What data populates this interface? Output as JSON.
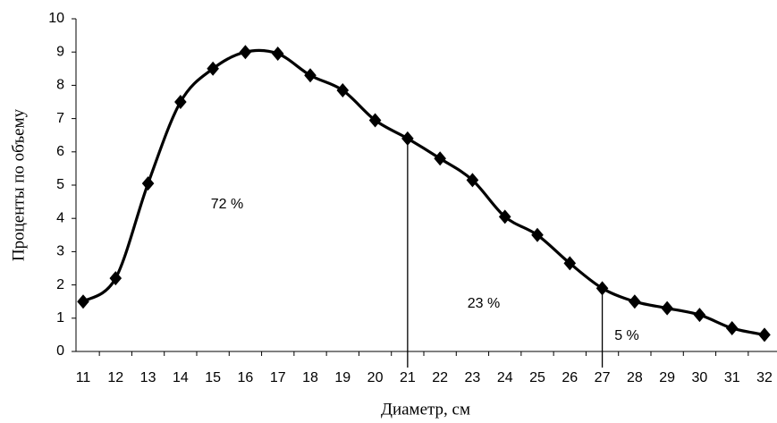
{
  "chart_data": {
    "type": "line",
    "x_label": "Диаметр, см",
    "y_label": "Проценты по объему",
    "x": [
      11,
      12,
      13,
      14,
      15,
      16,
      17,
      18,
      19,
      20,
      21,
      22,
      23,
      24,
      25,
      26,
      27,
      28,
      29,
      30,
      31,
      32
    ],
    "xlim": [
      11,
      32
    ],
    "series": [
      {
        "name": "Проценты по объему",
        "color": "#000000",
        "values": [
          1.5,
          2.2,
          5.05,
          7.5,
          8.5,
          9.0,
          8.95,
          8.3,
          7.85,
          6.95,
          6.4,
          5.8,
          5.15,
          4.05,
          3.5,
          2.65,
          1.9,
          1.5,
          1.3,
          1.1,
          0.7,
          0.5
        ]
      }
    ],
    "ylim": [
      0,
      10
    ],
    "yticks": [
      0,
      1,
      2,
      3,
      4,
      5,
      6,
      7,
      8,
      9,
      10
    ],
    "dividers": [
      21,
      27
    ],
    "annotations": [
      "72 %",
      "23 %",
      "5 %"
    ],
    "grid": false
  }
}
